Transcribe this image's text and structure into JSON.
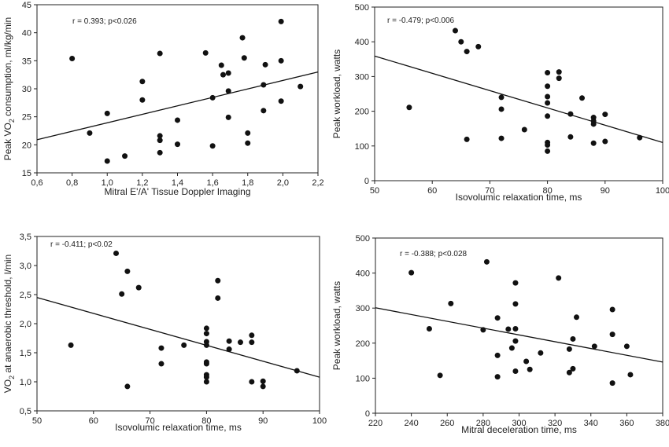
{
  "chart_data": [
    {
      "type": "scatter",
      "xlabel": "Mitral E'/A' Tissue Doppler Imaging",
      "ylabel_pre": "Peak VO",
      "ylabel_sub": "2",
      "ylabel_post": " consumption, ml/kg/min",
      "annotation": "r = 0.393; p<0.026",
      "xlim": [
        0.6,
        2.2
      ],
      "ylim": [
        15,
        45
      ],
      "xticks": [
        0.6,
        0.8,
        1.0,
        1.2,
        1.4,
        1.6,
        1.8,
        2.0,
        2.2
      ],
      "xtick_labels": [
        "0,6",
        "0,8",
        "1,0",
        "1,2",
        "1,4",
        "1,6",
        "1,8",
        "2,0",
        "2,2"
      ],
      "yticks": [
        15,
        20,
        25,
        30,
        35,
        40,
        45
      ],
      "ytick_labels": [
        "15",
        "20",
        "25",
        "30",
        "35",
        "40",
        "45"
      ],
      "trendline": [
        [
          0.6,
          20.9
        ],
        [
          2.2,
          33.0
        ]
      ],
      "points": [
        [
          0.8,
          35.4
        ],
        [
          0.9,
          22.1
        ],
        [
          1.0,
          25.6
        ],
        [
          1.0,
          17.1
        ],
        [
          1.1,
          18.0
        ],
        [
          1.2,
          31.3
        ],
        [
          1.2,
          28.0
        ],
        [
          1.3,
          36.3
        ],
        [
          1.3,
          21.6
        ],
        [
          1.3,
          20.8
        ],
        [
          1.3,
          18.6
        ],
        [
          1.4,
          24.4
        ],
        [
          1.4,
          20.1
        ],
        [
          1.56,
          36.4
        ],
        [
          1.6,
          28.4
        ],
        [
          1.6,
          19.8
        ],
        [
          1.65,
          34.2
        ],
        [
          1.66,
          32.5
        ],
        [
          1.69,
          32.8
        ],
        [
          1.69,
          29.6
        ],
        [
          1.69,
          24.9
        ],
        [
          1.77,
          39.1
        ],
        [
          1.78,
          35.5
        ],
        [
          1.8,
          22.1
        ],
        [
          1.8,
          20.3
        ],
        [
          1.89,
          30.7
        ],
        [
          1.89,
          26.1
        ],
        [
          1.9,
          34.3
        ],
        [
          1.99,
          42.0
        ],
        [
          1.99,
          35.0
        ],
        [
          1.99,
          27.8
        ],
        [
          2.1,
          30.4
        ]
      ]
    },
    {
      "type": "scatter",
      "xlabel": "Isovolumic relaxation time, ms",
      "ylabel_pre": "Peak workload, watts",
      "ylabel_sub": "",
      "ylabel_post": "",
      "annotation": "r = -0.479; p<0.006",
      "xlim": [
        50,
        100
      ],
      "ylim": [
        0,
        500
      ],
      "xticks": [
        50,
        60,
        70,
        80,
        90,
        100
      ],
      "xtick_labels": [
        "50",
        "60",
        "70",
        "80",
        "90",
        "100"
      ],
      "yticks": [
        0,
        100,
        200,
        300,
        400,
        500
      ],
      "ytick_labels": [
        "0",
        "100",
        "200",
        "300",
        "400",
        "500"
      ],
      "trendline": [
        [
          50,
          359
        ],
        [
          100,
          110
        ]
      ],
      "points": [
        [
          56,
          211
        ],
        [
          64,
          432
        ],
        [
          65,
          400
        ],
        [
          66,
          372
        ],
        [
          66,
          119
        ],
        [
          68,
          386
        ],
        [
          72,
          240
        ],
        [
          72,
          206
        ],
        [
          72,
          122
        ],
        [
          76,
          147
        ],
        [
          80,
          311
        ],
        [
          80,
          272
        ],
        [
          80,
          242
        ],
        [
          80,
          224
        ],
        [
          80,
          186
        ],
        [
          80,
          110
        ],
        [
          80,
          103
        ],
        [
          80,
          85
        ],
        [
          82,
          313
        ],
        [
          82,
          295
        ],
        [
          84,
          192
        ],
        [
          84,
          126
        ],
        [
          86,
          238
        ],
        [
          88,
          182
        ],
        [
          88,
          172
        ],
        [
          88,
          163
        ],
        [
          88,
          108
        ],
        [
          90,
          191
        ],
        [
          90,
          113
        ],
        [
          96,
          124
        ]
      ]
    },
    {
      "type": "scatter",
      "xlabel": "Isovolumic relaxation time, ms",
      "ylabel_pre": "VO",
      "ylabel_sub": "2",
      "ylabel_post": " at anaerobic threshold, l/min",
      "annotation": "r = -0.411; p<0.02",
      "xlim": [
        50,
        100
      ],
      "ylim": [
        0.5,
        3.5
      ],
      "xticks": [
        50,
        60,
        70,
        80,
        90,
        100
      ],
      "xtick_labels": [
        "50",
        "60",
        "70",
        "80",
        "90",
        "100"
      ],
      "yticks": [
        0.5,
        1.0,
        1.5,
        2.0,
        2.5,
        3.0,
        3.5
      ],
      "ytick_labels": [
        "0,5",
        "1,0",
        "1,5",
        "2,0",
        "2,5",
        "3,0",
        "3,5"
      ],
      "trendline": [
        [
          50,
          2.45
        ],
        [
          100,
          1.08
        ]
      ],
      "points": [
        [
          56,
          1.63
        ],
        [
          64,
          3.21
        ],
        [
          65,
          2.51
        ],
        [
          66,
          2.9
        ],
        [
          66,
          0.92
        ],
        [
          68,
          2.62
        ],
        [
          72,
          1.58
        ],
        [
          72,
          1.31
        ],
        [
          76,
          1.63
        ],
        [
          80,
          1.92
        ],
        [
          80,
          1.83
        ],
        [
          80,
          1.69
        ],
        [
          80,
          1.63
        ],
        [
          80,
          1.34
        ],
        [
          80,
          1.31
        ],
        [
          80,
          1.12
        ],
        [
          80,
          1.08
        ],
        [
          80,
          1.0
        ],
        [
          82,
          2.74
        ],
        [
          82,
          2.44
        ],
        [
          84,
          1.7
        ],
        [
          84,
          1.56
        ],
        [
          86,
          1.68
        ],
        [
          88,
          1.8
        ],
        [
          88,
          1.68
        ],
        [
          88,
          1.0
        ],
        [
          90,
          1.01
        ],
        [
          90,
          0.92
        ],
        [
          96,
          1.19
        ]
      ]
    },
    {
      "type": "scatter",
      "xlabel": "Mitral deceleration time, ms",
      "ylabel_pre": "Peak workload, watts",
      "ylabel_sub": "",
      "ylabel_post": "",
      "annotation": "r = -0.388; p<0.028",
      "xlim": [
        220,
        380
      ],
      "ylim": [
        0,
        500
      ],
      "xticks": [
        220,
        240,
        260,
        280,
        300,
        320,
        340,
        360,
        380
      ],
      "xtick_labels": [
        "220",
        "240",
        "260",
        "280",
        "300",
        "320",
        "340",
        "360",
        "380"
      ],
      "yticks": [
        0,
        100,
        200,
        300,
        400,
        500
      ],
      "ytick_labels": [
        "0",
        "100",
        "200",
        "300",
        "400",
        "500"
      ],
      "trendline": [
        [
          220,
          301
        ],
        [
          380,
          146
        ]
      ],
      "points": [
        [
          240,
          401
        ],
        [
          250,
          241
        ],
        [
          256,
          108
        ],
        [
          262,
          313
        ],
        [
          280,
          238
        ],
        [
          282,
          432
        ],
        [
          288,
          272
        ],
        [
          288,
          165
        ],
        [
          288,
          104
        ],
        [
          294,
          240
        ],
        [
          296,
          186
        ],
        [
          298,
          372
        ],
        [
          298,
          312
        ],
        [
          298,
          241
        ],
        [
          298,
          206
        ],
        [
          298,
          120
        ],
        [
          304,
          148
        ],
        [
          306,
          125
        ],
        [
          312,
          172
        ],
        [
          322,
          386
        ],
        [
          328,
          183
        ],
        [
          328,
          116
        ],
        [
          330,
          212
        ],
        [
          330,
          127
        ],
        [
          332,
          274
        ],
        [
          342,
          191
        ],
        [
          352,
          296
        ],
        [
          352,
          225
        ],
        [
          352,
          86
        ],
        [
          360,
          191
        ],
        [
          362,
          110
        ]
      ]
    }
  ]
}
